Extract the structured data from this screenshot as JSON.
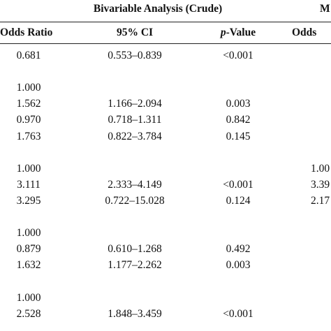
{
  "table": {
    "group_headers": {
      "bivariable": "Bivariable Analysis (Crude)",
      "multivariable_cut": "M"
    },
    "column_headers": {
      "odds_ratio": "Odds Ratio",
      "ci": "95% CI",
      "p_italic": "p",
      "p_rest": "-Value",
      "odds_cut": "Odds"
    },
    "rows": [
      {
        "or": "0.681",
        "ci": "0.553–0.839",
        "p": "<0.001",
        "mv": ""
      },
      {
        "or": "",
        "ci": "",
        "p": "",
        "mv": ""
      },
      {
        "or": "1.000",
        "ci": "",
        "p": "",
        "mv": ""
      },
      {
        "or": "1.562",
        "ci": "1.166–2.094",
        "p": "0.003",
        "mv": ""
      },
      {
        "or": "0.970",
        "ci": "0.718–1.311",
        "p": "0.842",
        "mv": ""
      },
      {
        "or": "1.763",
        "ci": "0.822–3.784",
        "p": "0.145",
        "mv": ""
      },
      {
        "or": "",
        "ci": "",
        "p": "",
        "mv": ""
      },
      {
        "or": "1.000",
        "ci": "",
        "p": "",
        "mv": "1.00"
      },
      {
        "or": "3.111",
        "ci": "2.333–4.149",
        "p": "<0.001",
        "mv": "3.39"
      },
      {
        "or": "3.295",
        "ci": "0.722–15.028",
        "p": "0.124",
        "mv": "2.17"
      },
      {
        "or": "",
        "ci": "",
        "p": "",
        "mv": ""
      },
      {
        "or": "1.000",
        "ci": "",
        "p": "",
        "mv": ""
      },
      {
        "or": "0.879",
        "ci": "0.610–1.268",
        "p": "0.492",
        "mv": ""
      },
      {
        "or": "1.632",
        "ci": "1.177–2.262",
        "p": "0.003",
        "mv": ""
      },
      {
        "or": "",
        "ci": "",
        "p": "",
        "mv": ""
      },
      {
        "or": "1.000",
        "ci": "",
        "p": "",
        "mv": ""
      },
      {
        "or": "2.528",
        "ci": "1.848–3.459",
        "p": "<0.001",
        "mv": ""
      }
    ]
  }
}
